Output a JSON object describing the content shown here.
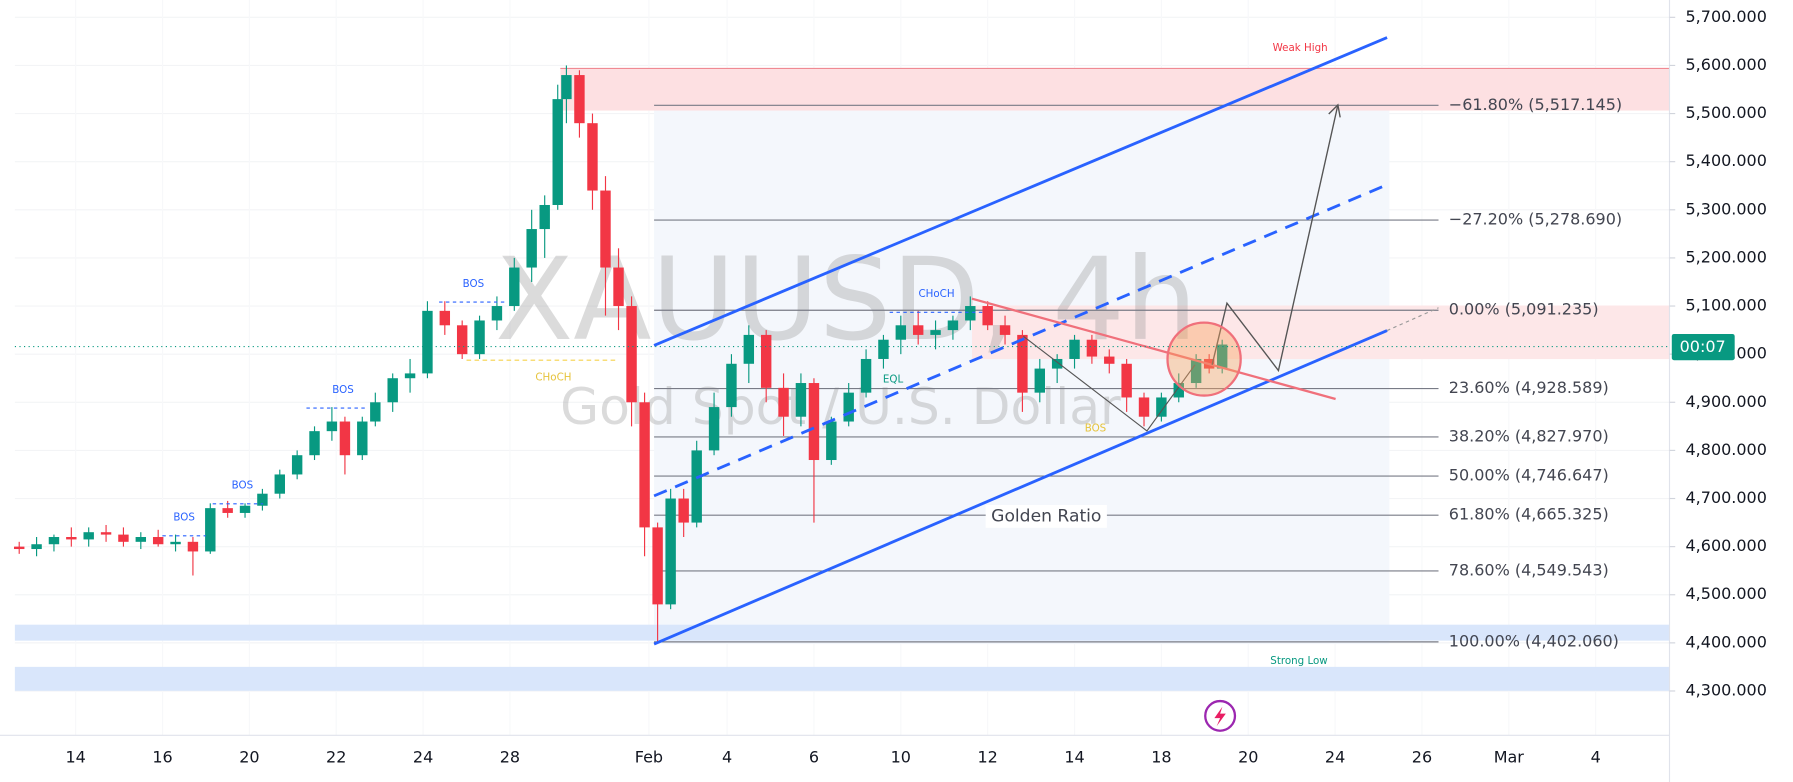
{
  "chart_data": {
    "type": "candlestick",
    "title": "XAUUSD, 4h",
    "subtitle": "Gold Spot / U.S. Dollar",
    "up_color": "#089981",
    "down_color": "#f23645",
    "xlim": [
      -1.4,
      36.7
    ],
    "xticks": [
      {
        "value": 0,
        "label": "14"
      },
      {
        "value": 2,
        "label": "16"
      },
      {
        "value": 4,
        "label": "20"
      },
      {
        "value": 6,
        "label": "22"
      },
      {
        "value": 8,
        "label": "24"
      },
      {
        "value": 10,
        "label": "28"
      },
      {
        "value": 13.2,
        "label": "Feb"
      },
      {
        "value": 15,
        "label": "4"
      },
      {
        "value": 17,
        "label": "6"
      },
      {
        "value": 19,
        "label": "10"
      },
      {
        "value": 21,
        "label": "12"
      },
      {
        "value": 23,
        "label": "14"
      },
      {
        "value": 25,
        "label": "18"
      },
      {
        "value": 27,
        "label": "20"
      },
      {
        "value": 29,
        "label": "24"
      },
      {
        "value": 31,
        "label": "26"
      },
      {
        "value": 33,
        "label": "Mar"
      },
      {
        "value": 35,
        "label": "4"
      }
    ],
    "ylim": [
      4208,
      5736
    ],
    "yticks": [
      {
        "value": 4300,
        "label": "4,300.000"
      },
      {
        "value": 4400,
        "label": "4,400.000"
      },
      {
        "value": 4500,
        "label": "4,500.000"
      },
      {
        "value": 4600,
        "label": "4,600.000"
      },
      {
        "value": 4700,
        "label": "4,700.000"
      },
      {
        "value": 4800,
        "label": "4,800.000"
      },
      {
        "value": 4900,
        "label": "4,900.000"
      },
      {
        "value": 5000,
        "label": "5,000.000"
      },
      {
        "value": 5100,
        "label": "5,100.000"
      },
      {
        "value": 5200,
        "label": "5,200.000"
      },
      {
        "value": 5300,
        "label": "5,300.000"
      },
      {
        "value": 5400,
        "label": "5,400.000"
      },
      {
        "value": 5500,
        "label": "5,500.000"
      },
      {
        "value": 5600,
        "label": "5,600.000"
      },
      {
        "value": 5700,
        "label": "5,700.000"
      }
    ],
    "x": [
      -1.3,
      -0.9,
      -0.5,
      -0.1,
      0.3,
      0.7,
      1.1,
      1.5,
      1.9,
      2.3,
      2.7,
      3.1,
      3.5,
      3.9,
      4.3,
      4.7,
      5.1,
      5.5,
      5.9,
      6.2,
      6.6,
      6.9,
      7.3,
      7.7,
      8.1,
      8.5,
      8.9,
      9.3,
      9.7,
      10.1,
      10.5,
      10.8,
      11.1,
      11.3,
      11.6,
      11.9,
      12.2,
      12.5,
      12.8,
      13.1,
      13.4,
      13.7,
      14.0,
      14.3,
      14.7,
      15.1,
      15.5,
      15.9,
      16.3,
      16.7,
      17.0,
      17.4,
      17.8,
      18.2,
      18.6,
      19.0,
      19.4,
      19.8,
      20.2,
      20.6,
      21.0,
      21.4,
      21.8,
      22.2,
      22.6,
      23.0,
      23.4,
      23.8,
      24.2,
      24.6,
      25.0,
      25.4,
      25.8,
      26.1,
      26.4
    ],
    "open": [
      4600,
      4595,
      4605,
      4620,
      4615,
      4630,
      4625,
      4610,
      4620,
      4605,
      4610,
      4590,
      4680,
      4670,
      4685,
      4710,
      4750,
      4790,
      4840,
      4860,
      4790,
      4860,
      4900,
      4950,
      4960,
      5090,
      5060,
      5000,
      5070,
      5100,
      5180,
      5260,
      5310,
      5530,
      5580,
      5480,
      5340,
      5180,
      5100,
      4900,
      4640,
      4480,
      4700,
      4650,
      4800,
      4890,
      4980,
      5040,
      4930,
      4870,
      4940,
      4780,
      4860,
      4920,
      4990,
      5030,
      5060,
      5040,
      5050,
      5070,
      5100,
      5060,
      5040,
      4920,
      4970,
      4990,
      5030,
      4995,
      4980,
      4910,
      4870,
      4910,
      4940,
      4990,
      4970
    ],
    "high": [
      4610,
      4620,
      4625,
      4640,
      4640,
      4645,
      4640,
      4630,
      4635,
      4625,
      4620,
      4690,
      4695,
      4690,
      4720,
      4760,
      4800,
      4850,
      4890,
      4870,
      4870,
      4920,
      4960,
      4990,
      5110,
      5110,
      5070,
      5080,
      5120,
      5200,
      5300,
      5330,
      5560,
      5600,
      5590,
      5500,
      5370,
      5220,
      5120,
      4920,
      4650,
      4720,
      4720,
      4820,
      4920,
      5000,
      5060,
      5050,
      4960,
      4960,
      4950,
      4870,
      4940,
      5010,
      5040,
      5080,
      5090,
      5070,
      5080,
      5120,
      5110,
      5080,
      5050,
      4990,
      5000,
      5040,
      5040,
      5010,
      4990,
      4920,
      4920,
      4960,
      5000,
      5000,
      5030
    ],
    "low": [
      4585,
      4580,
      4590,
      4600,
      4600,
      4610,
      4600,
      4595,
      4600,
      4590,
      4540,
      4585,
      4660,
      4660,
      4675,
      4700,
      4740,
      4780,
      4820,
      4750,
      4780,
      4850,
      4880,
      4920,
      4950,
      5040,
      4990,
      4990,
      5050,
      5090,
      5150,
      5200,
      5300,
      5480,
      5450,
      5300,
      5080,
      5050,
      4850,
      4580,
      4402,
      4470,
      4620,
      4640,
      4790,
      4870,
      4940,
      4900,
      4830,
      4850,
      4650,
      4770,
      4850,
      4910,
      4970,
      5000,
      5020,
      5010,
      5030,
      5050,
      5050,
      5020,
      4880,
      4900,
      4940,
      4970,
      4980,
      4960,
      4880,
      4850,
      4860,
      4900,
      4930,
      4960,
      4960
    ],
    "close": [
      4595,
      4605,
      4620,
      4615,
      4630,
      4625,
      4610,
      4620,
      4605,
      4610,
      4590,
      4680,
      4670,
      4685,
      4710,
      4750,
      4790,
      4840,
      4860,
      4790,
      4860,
      4900,
      4950,
      4960,
      5090,
      5060,
      5000,
      5070,
      5100,
      5180,
      5260,
      5310,
      5530,
      5580,
      5480,
      5340,
      5180,
      5100,
      4900,
      4640,
      4480,
      4700,
      4650,
      4800,
      4890,
      4980,
      5040,
      4930,
      4870,
      4940,
      4780,
      4860,
      4920,
      4990,
      5030,
      5060,
      5040,
      5050,
      5070,
      5100,
      5060,
      5040,
      4920,
      4970,
      4990,
      5030,
      4995,
      4980,
      4910,
      4870,
      4910,
      4940,
      4990,
      4970,
      5020
    ],
    "fib_levels": [
      {
        "label": "−61.80% (5,517.145)",
        "value": 5517.145
      },
      {
        "label": "−27.20% (5,278.690)",
        "value": 5278.69
      },
      {
        "label": "0.00% (5,091.235)",
        "value": 5091.235
      },
      {
        "label": "23.60% (4,928.589)",
        "value": 4928.589
      },
      {
        "label": "38.20% (4,827.970)",
        "value": 4827.97
      },
      {
        "label": "50.00% (4,746.647)",
        "value": 4746.647
      },
      {
        "label": "61.80% (4,665.325)",
        "value": 4665.325
      },
      {
        "label": "78.60% (4,549.543)",
        "value": 4549.543
      },
      {
        "label": "100.00% (4,402.060)",
        "value": 4402.06
      }
    ],
    "annotations": {
      "golden_ratio": "Golden Ratio",
      "weak_high": "Weak High",
      "strong_low": "Strong Low",
      "bos_1": "BOS",
      "bos_2": "BOS",
      "bos_3": "BOS",
      "bos_4": "BOS",
      "bos_5": "BOS",
      "choch_1": "CHoCH",
      "choch_2": "CHoCH",
      "eql": "EQL"
    },
    "countdown": "00:07"
  }
}
